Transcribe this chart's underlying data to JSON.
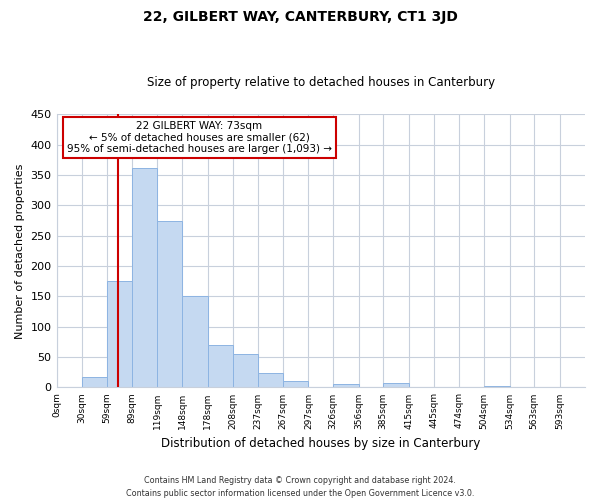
{
  "title": "22, GILBERT WAY, CANTERBURY, CT1 3JD",
  "subtitle": "Size of property relative to detached houses in Canterbury",
  "xlabel": "Distribution of detached houses by size in Canterbury",
  "ylabel": "Number of detached properties",
  "bin_labels": [
    "0sqm",
    "30sqm",
    "59sqm",
    "89sqm",
    "119sqm",
    "148sqm",
    "178sqm",
    "208sqm",
    "237sqm",
    "267sqm",
    "297sqm",
    "326sqm",
    "356sqm",
    "385sqm",
    "415sqm",
    "445sqm",
    "474sqm",
    "504sqm",
    "534sqm",
    "563sqm",
    "593sqm"
  ],
  "bar_heights": [
    0,
    18,
    175,
    362,
    275,
    150,
    70,
    55,
    23,
    10,
    0,
    6,
    0,
    7,
    0,
    0,
    0,
    2,
    0,
    0,
    0
  ],
  "bar_color": "#c5d9f1",
  "bar_edge_color": "#8db4e2",
  "grid_color": "#c8d0dc",
  "vline_x": 73,
  "vline_color": "#cc0000",
  "ylim": [
    0,
    450
  ],
  "yticks": [
    0,
    50,
    100,
    150,
    200,
    250,
    300,
    350,
    400,
    450
  ],
  "annotation_title": "22 GILBERT WAY: 73sqm",
  "annotation_line1": "← 5% of detached houses are smaller (62)",
  "annotation_line2": "95% of semi-detached houses are larger (1,093) →",
  "footer1": "Contains HM Land Registry data © Crown copyright and database right 2024.",
  "footer2": "Contains public sector information licensed under the Open Government Licence v3.0.",
  "bin_edges": [
    0,
    30,
    59,
    89,
    119,
    148,
    178,
    208,
    237,
    267,
    297,
    326,
    356,
    385,
    415,
    445,
    474,
    504,
    534,
    563,
    593,
    623
  ]
}
